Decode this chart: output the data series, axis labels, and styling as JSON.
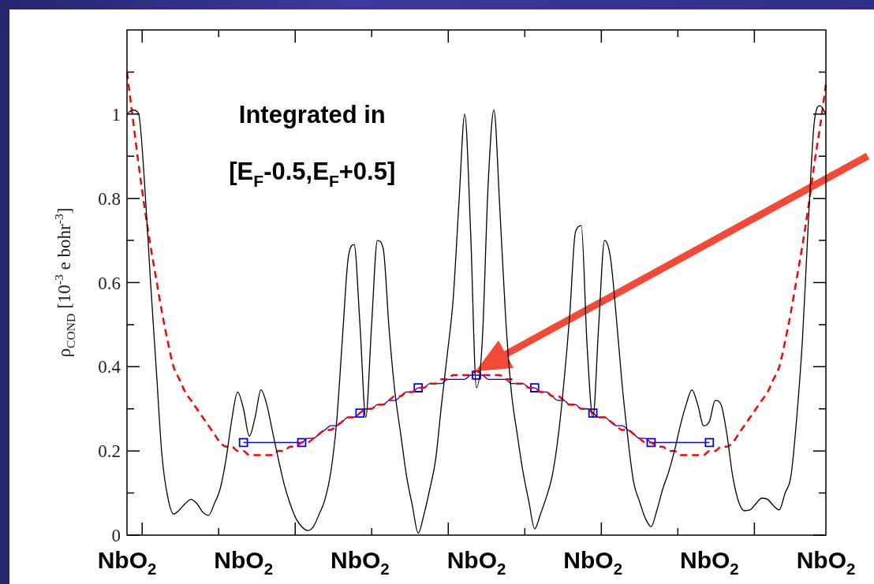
{
  "chart_data": {
    "type": "line",
    "ylabel": "ρ$_{COND}$ [10$^{-3}$ e bohr$^{-3}$]",
    "annotations": [
      "Integrated in",
      "[E$_{F}$-0.5,E$_{F}$+0.5]"
    ],
    "categories": [
      "NbO$_{2}$",
      null,
      null,
      null,
      null,
      null,
      null,
      null,
      null,
      null,
      null,
      null,
      null,
      null,
      null,
      null,
      null,
      null,
      null,
      null,
      "NbO$_{2}$",
      null,
      null,
      null,
      null,
      null,
      null,
      null,
      null,
      null,
      null,
      null,
      null,
      null,
      null,
      null,
      null,
      null,
      null,
      null,
      "NbO$_{2}$",
      null,
      null,
      null,
      null,
      null,
      null,
      null,
      null,
      null,
      null,
      null,
      null,
      null,
      null,
      null,
      null,
      null,
      null,
      null,
      "NbO$_{2}$",
      null,
      null,
      null,
      null,
      null,
      null,
      null,
      null,
      null,
      null,
      null,
      null,
      null,
      null,
      null,
      null,
      null,
      null,
      null,
      "NbO$_{2}$",
      null,
      null,
      null,
      null,
      null,
      null,
      null,
      null,
      null,
      null,
      null,
      null,
      null,
      null,
      null,
      null,
      null,
      null,
      null,
      "NbO$_{2}$",
      null,
      null,
      null,
      null,
      null,
      null,
      null,
      null,
      null,
      null,
      null,
      null,
      null,
      null,
      null,
      null,
      null,
      null,
      null,
      "NbO$_{2}$"
    ],
    "ylim": [
      0,
      1.2
    ],
    "yticks": [
      0,
      {
        "value": 0.1,
        "label": null
      },
      0.2,
      {
        "value": 0.3,
        "label": null
      },
      0.4,
      {
        "value": 0.5,
        "label": null
      },
      0.6,
      {
        "value": 0.7,
        "label": null
      },
      0.8,
      {
        "value": 0.9,
        "label": null
      },
      1,
      {
        "value": 1.1,
        "label": null
      }
    ],
    "series": [
      {
        "color": "#000000",
        "marker": "none",
        "line_style": "solid",
        "values": [
          1.0,
          1.01,
          1.0,
          0.84,
          0.61,
          0.4,
          0.19,
          0.09,
          0.05,
          0.06,
          0.075,
          0.085,
          0.075,
          0.055,
          0.047,
          0.075,
          0.11,
          0.18,
          0.275,
          0.34,
          0.3,
          0.235,
          0.28,
          0.345,
          0.31,
          0.245,
          0.18,
          0.12,
          0.075,
          0.04,
          0.02,
          0.011,
          0.02,
          0.05,
          0.085,
          0.15,
          0.27,
          0.47,
          0.66,
          0.69,
          0.5,
          0.28,
          0.5,
          0.7,
          0.68,
          0.49,
          0.34,
          0.24,
          0.14,
          0.07,
          0.005,
          0.05,
          0.11,
          0.18,
          0.31,
          0.43,
          0.56,
          0.79,
          1.0,
          0.72,
          0.35,
          0.46,
          0.83,
          1.01,
          0.78,
          0.52,
          0.34,
          0.24,
          0.15,
          0.08,
          0.015,
          0.05,
          0.09,
          0.14,
          0.23,
          0.36,
          0.52,
          0.72,
          0.735,
          0.45,
          0.28,
          0.5,
          0.7,
          0.66,
          0.52,
          0.36,
          0.23,
          0.125,
          0.08,
          0.04,
          0.02,
          0.06,
          0.11,
          0.15,
          0.2,
          0.26,
          0.31,
          0.345,
          0.31,
          0.26,
          0.27,
          0.32,
          0.31,
          0.24,
          0.14,
          0.08,
          0.058,
          0.06,
          0.075,
          0.088,
          0.085,
          0.07,
          0.06,
          0.1,
          0.14,
          0.28,
          0.47,
          0.746,
          0.98,
          1.02,
          1.0
        ]
      },
      {
        "color": "#ff0000",
        "marker": "none",
        "line_style": "dashed",
        "values": [
          1.1,
          0.99,
          0.88,
          0.78,
          0.69,
          0.61,
          0.53,
          0.46,
          0.4,
          0.37,
          0.34,
          0.32,
          0.3,
          0.28,
          0.26,
          0.24,
          0.22,
          0.21,
          0.21,
          0.2,
          0.2,
          0.19,
          0.19,
          0.19,
          0.19,
          0.19,
          0.2,
          0.2,
          0.21,
          0.21,
          0.22,
          0.22,
          0.23,
          0.24,
          0.25,
          0.25,
          0.26,
          0.27,
          0.28,
          0.28,
          0.29,
          0.3,
          0.3,
          0.31,
          0.31,
          0.32,
          0.33,
          0.33,
          0.34,
          0.34,
          0.35,
          0.35,
          0.36,
          0.36,
          0.37,
          0.37,
          0.38,
          0.38,
          0.38,
          0.38,
          0.39,
          0.38,
          0.38,
          0.38,
          0.38,
          0.37,
          0.37,
          0.36,
          0.36,
          0.35,
          0.35,
          0.34,
          0.34,
          0.33,
          0.33,
          0.32,
          0.31,
          0.31,
          0.3,
          0.3,
          0.29,
          0.28,
          0.28,
          0.27,
          0.26,
          0.25,
          0.25,
          0.24,
          0.23,
          0.22,
          0.22,
          0.21,
          0.21,
          0.2,
          0.2,
          0.19,
          0.19,
          0.19,
          0.19,
          0.19,
          0.2,
          0.2,
          0.21,
          0.21,
          0.22,
          0.24,
          0.26,
          0.28,
          0.3,
          0.32,
          0.34,
          0.37,
          0.4,
          0.46,
          0.53,
          0.61,
          0.69,
          0.78,
          0.88,
          0.97,
          1.07
        ]
      },
      {
        "color": "#0000ff",
        "marker": "none",
        "line_style": "solid",
        "values": [
          null,
          null,
          null,
          null,
          null,
          null,
          null,
          null,
          null,
          null,
          null,
          null,
          null,
          null,
          null,
          null,
          null,
          null,
          null,
          null,
          0.22,
          0.22,
          0.22,
          0.22,
          0.22,
          0.22,
          0.22,
          0.22,
          0.22,
          0.22,
          0.22,
          0.23,
          0.23,
          0.24,
          0.25,
          0.26,
          0.26,
          0.27,
          0.28,
          0.28,
          0.29,
          0.3,
          0.3,
          0.31,
          0.31,
          0.32,
          0.32,
          0.33,
          0.34,
          0.34,
          0.35,
          0.35,
          0.36,
          0.36,
          0.36,
          0.37,
          0.37,
          0.37,
          0.37,
          0.38,
          0.38,
          0.38,
          0.37,
          0.37,
          0.37,
          0.37,
          0.36,
          0.36,
          0.36,
          0.35,
          0.35,
          0.34,
          0.34,
          0.33,
          0.32,
          0.32,
          0.31,
          0.31,
          0.3,
          0.3,
          0.29,
          0.28,
          0.28,
          0.27,
          0.26,
          0.26,
          0.25,
          0.24,
          0.23,
          0.23,
          0.22,
          0.22,
          0.22,
          0.22,
          0.22,
          0.22,
          0.22,
          0.22,
          0.22,
          0.22,
          0.22,
          null,
          null,
          null,
          null,
          null,
          null,
          null,
          null,
          null,
          null,
          null,
          null,
          null,
          null,
          null,
          null,
          null,
          null,
          null,
          null
        ]
      },
      {
        "type": "scatter",
        "color": "#0000ff",
        "marker": "square",
        "values": [
          null,
          null,
          null,
          null,
          null,
          null,
          null,
          null,
          null,
          null,
          null,
          null,
          null,
          null,
          null,
          null,
          null,
          null,
          null,
          null,
          0.22,
          null,
          null,
          null,
          null,
          null,
          null,
          null,
          null,
          null,
          0.22,
          null,
          null,
          null,
          null,
          null,
          null,
          null,
          null,
          null,
          0.29,
          null,
          null,
          null,
          null,
          null,
          null,
          null,
          null,
          null,
          0.35,
          null,
          null,
          null,
          null,
          null,
          null,
          null,
          null,
          null,
          0.38,
          null,
          null,
          null,
          null,
          null,
          null,
          null,
          null,
          null,
          0.35,
          null,
          null,
          null,
          null,
          null,
          null,
          null,
          null,
          null,
          0.29,
          null,
          null,
          null,
          null,
          null,
          null,
          null,
          null,
          null,
          0.22,
          null,
          null,
          null,
          null,
          null,
          null,
          null,
          null,
          null,
          0.22,
          null,
          null,
          null,
          null,
          null,
          null,
          null,
          null,
          null,
          null,
          null,
          null,
          null,
          null,
          null,
          null,
          null,
          null,
          null,
          null
        ]
      }
    ]
  }
}
